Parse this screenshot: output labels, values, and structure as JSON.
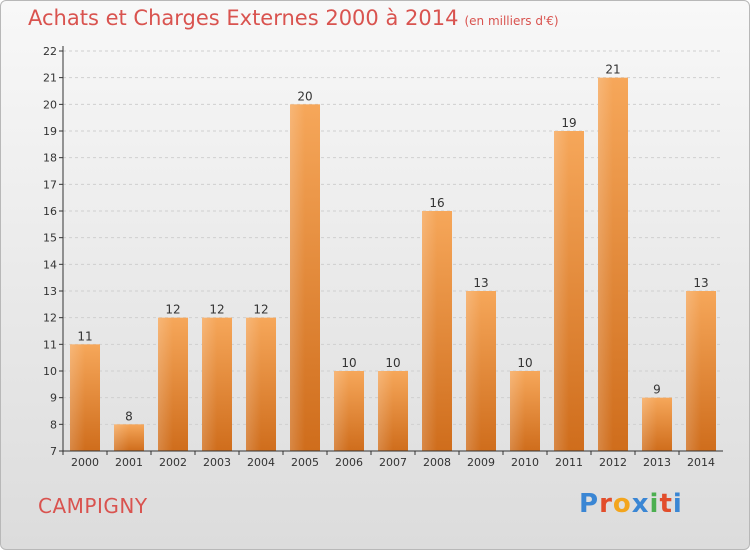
{
  "header": {
    "title": "Achats et Charges Externes 2000 à 2014",
    "unit": "(en milliers d'€)"
  },
  "footer": {
    "city": "CAMPIGNY",
    "brand": "Proxiti",
    "brand_colors": [
      "#3a86d4",
      "#e24d2b",
      "#f3a51d",
      "#3a86d4",
      "#4caf50",
      "#e24d2b",
      "#3a86d4"
    ]
  },
  "colors": {
    "title": "#d9534f",
    "bar_light": "#f6a75a",
    "bar_dark": "#cf6d1c",
    "grid": "#cfcfcf",
    "axis": "#333333"
  },
  "chart_data": {
    "type": "bar",
    "title": "Achats et Charges Externes 2000 à 2014",
    "subtitle": "(en milliers d'€)",
    "categories": [
      "2000",
      "2001",
      "2002",
      "2003",
      "2004",
      "2005",
      "2006",
      "2007",
      "2008",
      "2009",
      "2010",
      "2011",
      "2012",
      "2013",
      "2014"
    ],
    "values": [
      11,
      8,
      12,
      12,
      12,
      20,
      10,
      10,
      16,
      13,
      10,
      19,
      21,
      9,
      13
    ],
    "ylim": [
      7,
      22
    ],
    "yticks": [
      7,
      8,
      9,
      10,
      11,
      12,
      13,
      14,
      15,
      16,
      17,
      18,
      19,
      20,
      21,
      22
    ],
    "data_labels": true,
    "grid": true
  }
}
